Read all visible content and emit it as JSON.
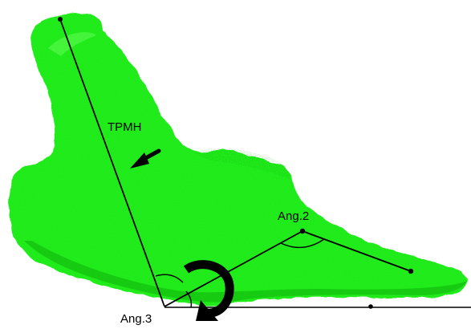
{
  "figure": {
    "colors": {
      "bone_fill": "#22ee1c",
      "bone_shade": "#10b80c",
      "bone_highlight": "#6bff5e",
      "line": "#000000",
      "background": "#ffffff"
    },
    "labels": {
      "tpmh": "TPMH",
      "angle2": "Ang.2",
      "angle3": "Ang.3"
    },
    "icons": {
      "direction_arrow": "arrow-left-down-icon",
      "rotation_arrow": "curved-rotation-arrow-icon"
    }
  }
}
